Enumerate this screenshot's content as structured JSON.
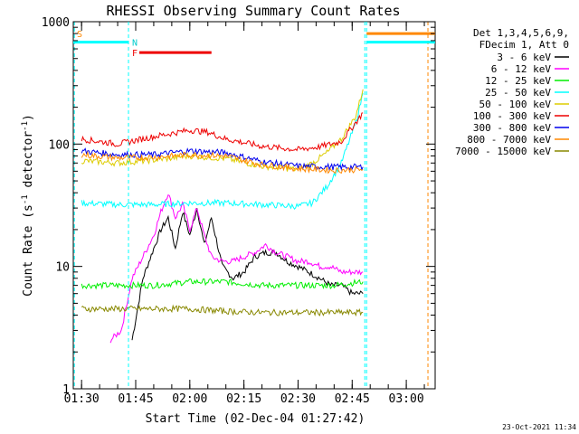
{
  "chart_data": {
    "type": "line",
    "title": "RHESSI Observing Summary Count Rates",
    "xlabel": "Start Time (02-Dec-04 01:27:42)",
    "ylabel_main": "Count Rate (s",
    "ylabel_sup1": "-1",
    "ylabel_mid": " detector",
    "ylabel_sup2": "-1",
    "ylabel_end": ")",
    "yscale": "log",
    "ylim": [
      1,
      1000
    ],
    "xlim": [
      "01:27:42",
      "03:08:00"
    ],
    "x_ticks": [
      "01:30",
      "01:45",
      "02:00",
      "02:15",
      "02:30",
      "02:45",
      "03:00"
    ],
    "y_ticks": [
      "1",
      "10",
      "100",
      "1000"
    ],
    "legend_header": [
      "Det 1,3,4,5,6,9,",
      "FDecim 1, Att 0"
    ],
    "series": [
      {
        "name": "3 - 6 keV",
        "color": "#000000",
        "x": [
          "01:44",
          "01:47",
          "01:50",
          "01:52",
          "01:54",
          "01:56",
          "01:58",
          "02:00",
          "02:02",
          "02:04",
          "02:06",
          "02:09",
          "02:12",
          "02:15",
          "02:18",
          "02:21",
          "02:24",
          "02:27",
          "02:30",
          "02:33",
          "02:36",
          "02:39",
          "02:42",
          "02:45",
          "02:48"
        ],
        "y": [
          2.5,
          8,
          14,
          20,
          25,
          14,
          28,
          18,
          30,
          15,
          25,
          10,
          8,
          9,
          12,
          13,
          13,
          11,
          10,
          9,
          8,
          7,
          7,
          6,
          6
        ]
      },
      {
        "name": "6 - 12 keV",
        "color": "#ff00ff",
        "x": [
          "01:38",
          "01:41",
          "01:44",
          "01:47",
          "01:50",
          "01:52",
          "01:54",
          "01:56",
          "01:58",
          "02:00",
          "02:02",
          "02:04",
          "02:06",
          "02:09",
          "02:12",
          "02:15",
          "02:18",
          "02:21",
          "02:24",
          "02:27",
          "02:30",
          "02:33",
          "02:36",
          "02:39",
          "02:42",
          "02:45",
          "02:48"
        ],
        "y": [
          2.5,
          3.0,
          8,
          12,
          18,
          28,
          40,
          25,
          32,
          20,
          30,
          18,
          12,
          11,
          11,
          12,
          13,
          15,
          13,
          12,
          11,
          11,
          10,
          10,
          9,
          9,
          9
        ]
      },
      {
        "name": "12 - 25 keV",
        "color": "#00ee00",
        "x": [
          "01:30",
          "01:40",
          "01:50",
          "02:00",
          "02:10",
          "02:20",
          "02:30",
          "02:40",
          "02:48"
        ],
        "y": [
          7,
          7,
          7,
          7.5,
          7.5,
          7,
          7,
          7,
          7.5
        ]
      },
      {
        "name": "25 - 50 keV",
        "color": "#00ffff",
        "x": [
          "01:30",
          "01:40",
          "01:50",
          "02:00",
          "02:10",
          "02:20",
          "02:30",
          "02:34",
          "02:38",
          "02:42",
          "02:46",
          "02:48"
        ],
        "y": [
          33,
          32,
          32,
          33,
          33,
          32,
          31,
          33,
          45,
          70,
          150,
          260
        ]
      },
      {
        "name": "50 - 100 keV",
        "color": "#ddcc00",
        "x": [
          "01:30",
          "01:40",
          "01:50",
          "02:00",
          "02:10",
          "02:20",
          "02:30",
          "02:34",
          "02:38",
          "02:42",
          "02:46",
          "02:48"
        ],
        "y": [
          73,
          70,
          74,
          80,
          76,
          66,
          62,
          70,
          85,
          110,
          170,
          280
        ]
      },
      {
        "name": "100 - 300 keV",
        "color": "#ee0000",
        "x": [
          "01:30",
          "01:40",
          "01:50",
          "02:00",
          "02:05",
          "02:10",
          "02:20",
          "02:30",
          "02:36",
          "02:42",
          "02:46",
          "02:48"
        ],
        "y": [
          110,
          100,
          115,
          130,
          125,
          110,
          96,
          90,
          95,
          105,
          150,
          180
        ]
      },
      {
        "name": "300 - 800 keV",
        "color": "#0000ee",
        "x": [
          "01:30",
          "01:40",
          "01:50",
          "02:00",
          "02:10",
          "02:20",
          "02:30",
          "02:40",
          "02:48"
        ],
        "y": [
          88,
          82,
          82,
          88,
          85,
          72,
          66,
          65,
          65
        ]
      },
      {
        "name": "800 - 7000 keV",
        "color": "#ff8800",
        "x": [
          "01:30",
          "01:40",
          "01:50",
          "02:00",
          "02:10",
          "02:20",
          "02:30",
          "02:40",
          "02:48"
        ],
        "y": [
          82,
          77,
          78,
          82,
          80,
          68,
          63,
          61,
          62
        ]
      },
      {
        "name": "7000 - 15000 keV",
        "color": "#888800",
        "x": [
          "01:30",
          "01:40",
          "01:50",
          "02:00",
          "02:10",
          "02:20",
          "02:30",
          "02:40",
          "02:48"
        ],
        "y": [
          4.5,
          4.5,
          4.5,
          4.5,
          4.3,
          4.2,
          4.2,
          4.2,
          4.2
        ]
      }
    ],
    "annotations": [
      {
        "text": "S",
        "color": "#ff8800",
        "x": "01:27:42",
        "y": 800
      },
      {
        "text": "N",
        "color": "#00cccc",
        "x": "01:43",
        "y": 680
      },
      {
        "text": "F",
        "color": "#ee0000",
        "x": "01:43",
        "y": 560
      }
    ],
    "status_bars": [
      {
        "label": "S",
        "color": "#00ffff",
        "from": "01:27:42",
        "to": "01:43",
        "y": 680
      },
      {
        "label": "F",
        "color": "#ee0000",
        "from": "01:46",
        "to": "02:06",
        "y": 560
      },
      {
        "label": "S",
        "color": "#00ffff",
        "from": "02:49",
        "to": "03:08",
        "y": 680
      },
      {
        "label": "S",
        "color": "#ff8800",
        "from": "02:49",
        "to": "03:08",
        "y": 800
      }
    ],
    "vlines": [
      {
        "x": "01:28",
        "color": "#00ffff"
      },
      {
        "x": "01:43",
        "color": "#00ffff"
      },
      {
        "x": "02:48:30",
        "color": "#00ffff"
      },
      {
        "x": "02:49",
        "color": "#00ffff"
      },
      {
        "x": "03:06",
        "color": "#ff8800"
      }
    ],
    "grid": false,
    "legend_position": "outside-right"
  },
  "timestamp": "23-Oct-2021 11:34"
}
